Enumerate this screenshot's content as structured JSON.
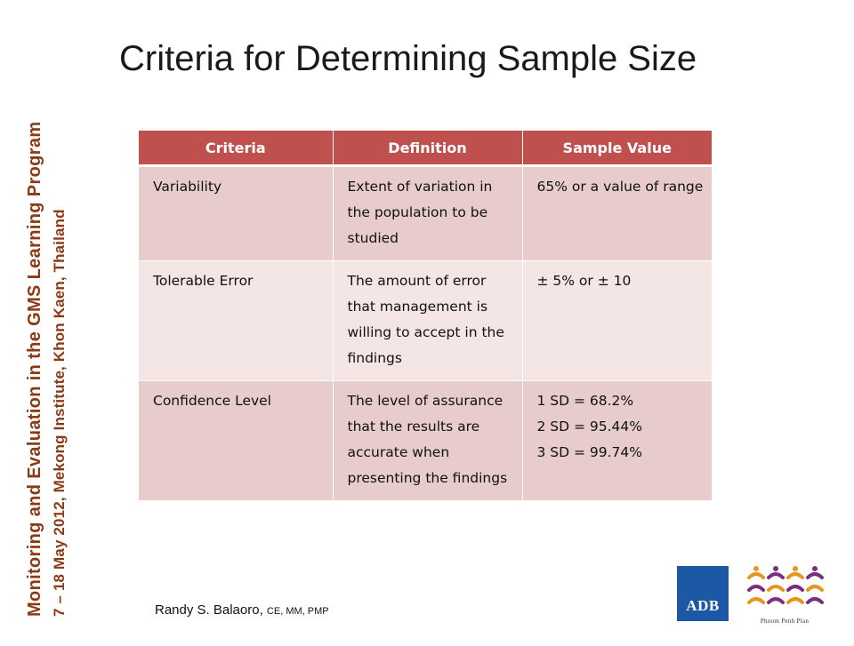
{
  "slide": {
    "title": "Criteria for Determining Sample Size",
    "sidebar": {
      "line1": "Monitoring and Evaluation in the GMS Learning Program",
      "line2": "7 – 18 May 2012, Mekong Institute, Khon Kaen, Thailand"
    },
    "author": {
      "name": "Randy S. Balaoro,",
      "credentials": "CE, MM, PMP"
    },
    "logos": {
      "adb": "ADB",
      "ppp": "Phnom Penh Plan"
    },
    "colors": {
      "header": "#c0504d",
      "row_dark": "#e7cccb",
      "row_light": "#f3e6e5",
      "sidebar_text": "#8c3a14",
      "adb_blue": "#1c58a5"
    }
  },
  "table": {
    "headers": [
      "Criteria",
      "Definition",
      "Sample Value"
    ],
    "rows": [
      {
        "criteria": "Variability",
        "definition": "Extent of variation in the population to be studied",
        "value_lines": [
          "65% or a value of range"
        ]
      },
      {
        "criteria": "Tolerable Error",
        "definition": "The amount of error that management is willing to accept in the findings",
        "value_lines": [
          "± 5% or ± 10"
        ]
      },
      {
        "criteria": "Confidence Level",
        "definition": "The level of assurance that the results are accurate when presenting the findings",
        "value_lines": [
          "1 SD = 68.2%",
          "2 SD = 95.44%",
          "3 SD = 99.74%"
        ]
      }
    ]
  }
}
